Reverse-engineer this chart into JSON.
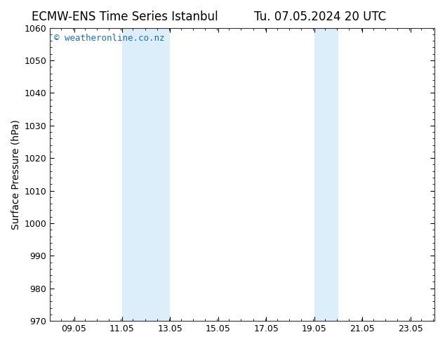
{
  "title_left": "ECMW-ENS Time Series Istanbul",
  "title_right": "Tu. 07.05.2024 20 UTC",
  "ylabel": "Surface Pressure (hPa)",
  "ylim": [
    970,
    1060
  ],
  "yticks": [
    970,
    980,
    990,
    1000,
    1010,
    1020,
    1030,
    1040,
    1050,
    1060
  ],
  "xlim": [
    8.05,
    24.05
  ],
  "xticks": [
    9.05,
    11.05,
    13.05,
    15.05,
    17.05,
    19.05,
    21.05,
    23.05
  ],
  "xticklabels": [
    "09.05",
    "11.05",
    "13.05",
    "15.05",
    "17.05",
    "19.05",
    "21.05",
    "23.05"
  ],
  "shaded_regions": [
    {
      "xmin": 11.05,
      "xmax": 13.05
    },
    {
      "xmin": 19.05,
      "xmax": 20.05
    }
  ],
  "shade_color": "#dceef9",
  "background_color": "#ffffff",
  "watermark_text": "© weatheronline.co.nz",
  "watermark_color": "#1a6fc4",
  "title_fontsize": 12,
  "ylabel_fontsize": 10,
  "tick_fontsize": 9,
  "watermark_fontsize": 9,
  "spine_color": "#333333"
}
